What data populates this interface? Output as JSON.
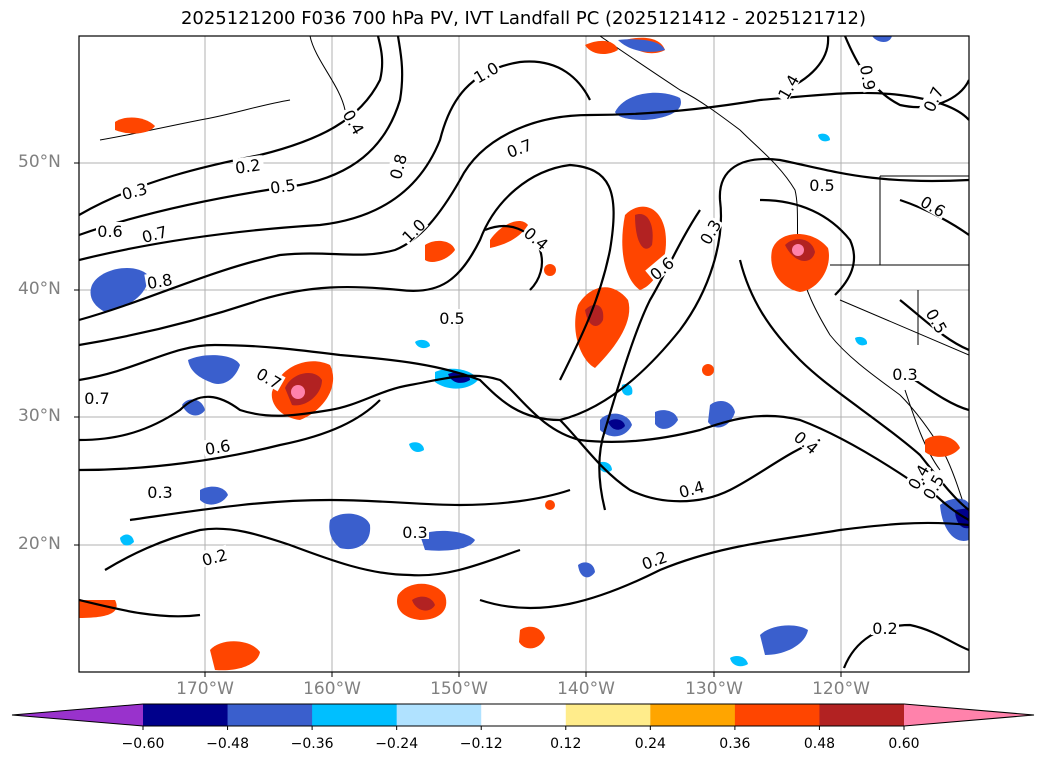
{
  "title": "2025121200 F036 700 hPa PV, IVT Landfall PC (2025121412 - 2025121712)",
  "lat_labels": [
    "50°N",
    "40°N",
    "30°N",
    "20°N"
  ],
  "lon_labels": [
    "170°W",
    "160°W",
    "150°W",
    "140°W",
    "130°W",
    "120°W"
  ],
  "colorbar": {
    "ticks": [
      "−0.60",
      "−0.48",
      "−0.36",
      "−0.24",
      "−0.12",
      "0.12",
      "0.24",
      "0.36",
      "0.48",
      "0.60"
    ],
    "colors": [
      "#9932cc",
      "#00008b",
      "#3a5fcd",
      "#00bfff",
      "#b0e2ff",
      "#ffffff",
      "#ffec8b",
      "#ffa500",
      "#ff4500",
      "#b22222",
      "#ff82ab"
    ]
  },
  "contour_labels": [
    "1.0",
    "0.4",
    "0.2",
    "0.5",
    "0.3",
    "0.8",
    "0.6",
    "0.7",
    "1.0",
    "0.7",
    "0.4",
    "0.3",
    "0.5",
    "0.6",
    "0.9",
    "0.7",
    "1.4",
    "0.8",
    "0.7",
    "0.5",
    "0.7",
    "0.6",
    "0.3",
    "0.2",
    "0.3",
    "0.2",
    "0.4",
    "0.4",
    "0.2",
    "0.2",
    "0.3",
    "0.5",
    "0.4",
    "0.5",
    "0.6"
  ]
}
